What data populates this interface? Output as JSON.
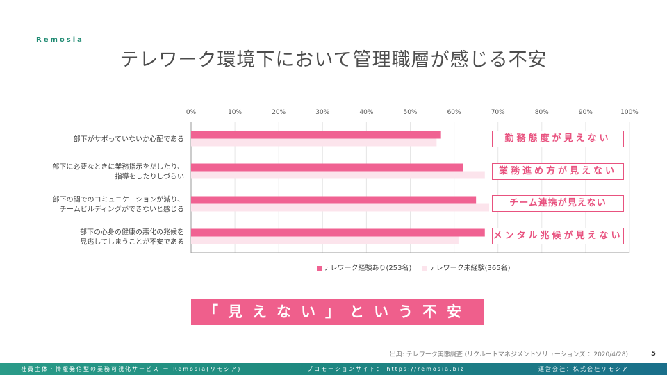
{
  "brand": "Remosia",
  "title": "テレワーク環境下において管理職層が感じる不安",
  "chart_data": {
    "type": "bar",
    "orientation": "horizontal",
    "categories": [
      [
        "部下がサボっていないか心配である"
      ],
      [
        "部下に必要なときに業務指示をだしたり、",
        "指導をしたりしづらい"
      ],
      [
        "部下の間でのコミュニケーションが減り、",
        "チームビルディングができないと感じる"
      ],
      [
        "部下の心身の健康の悪化の兆候を",
        "見逃してしまうことが不安である"
      ]
    ],
    "series": [
      {
        "name": "テレワーク経験あり(253名)",
        "color": "#f06292",
        "values": [
          57,
          62,
          65,
          67
        ]
      },
      {
        "name": "テレワーク未経験(365名)",
        "color": "#fce4ec",
        "values": [
          56,
          67,
          68,
          61
        ]
      }
    ],
    "xlim": [
      0,
      100
    ],
    "ticks": [
      "0%",
      "10%",
      "20%",
      "30%",
      "40%",
      "50%",
      "60%",
      "70%",
      "80%",
      "90%",
      "100%"
    ],
    "grid": true,
    "legend_position": "bottom"
  },
  "callouts": [
    "勤務態度が見えない",
    "業務進め方が見えない",
    "チーム連携が見えない",
    "メンタル兆候が見えない"
  ],
  "banner": "「見えない」という不安",
  "source": "出典: テレワーク実態調査 (リクルートマネジメントソリューションズ ：2020/4/28)",
  "page_number": "5",
  "footer": {
    "left": "社員主体・情報発信型の業務可視化サービス ー Remosia(リモシア)",
    "center": "プロモーションサイト： https://remosia.biz",
    "right": "運営会社：株式会社リモシア"
  },
  "colors": {
    "accent": "#e8527f",
    "banner": "#ef5f8c",
    "footer": "#1f8b7f",
    "brand": "#1f8a72"
  }
}
